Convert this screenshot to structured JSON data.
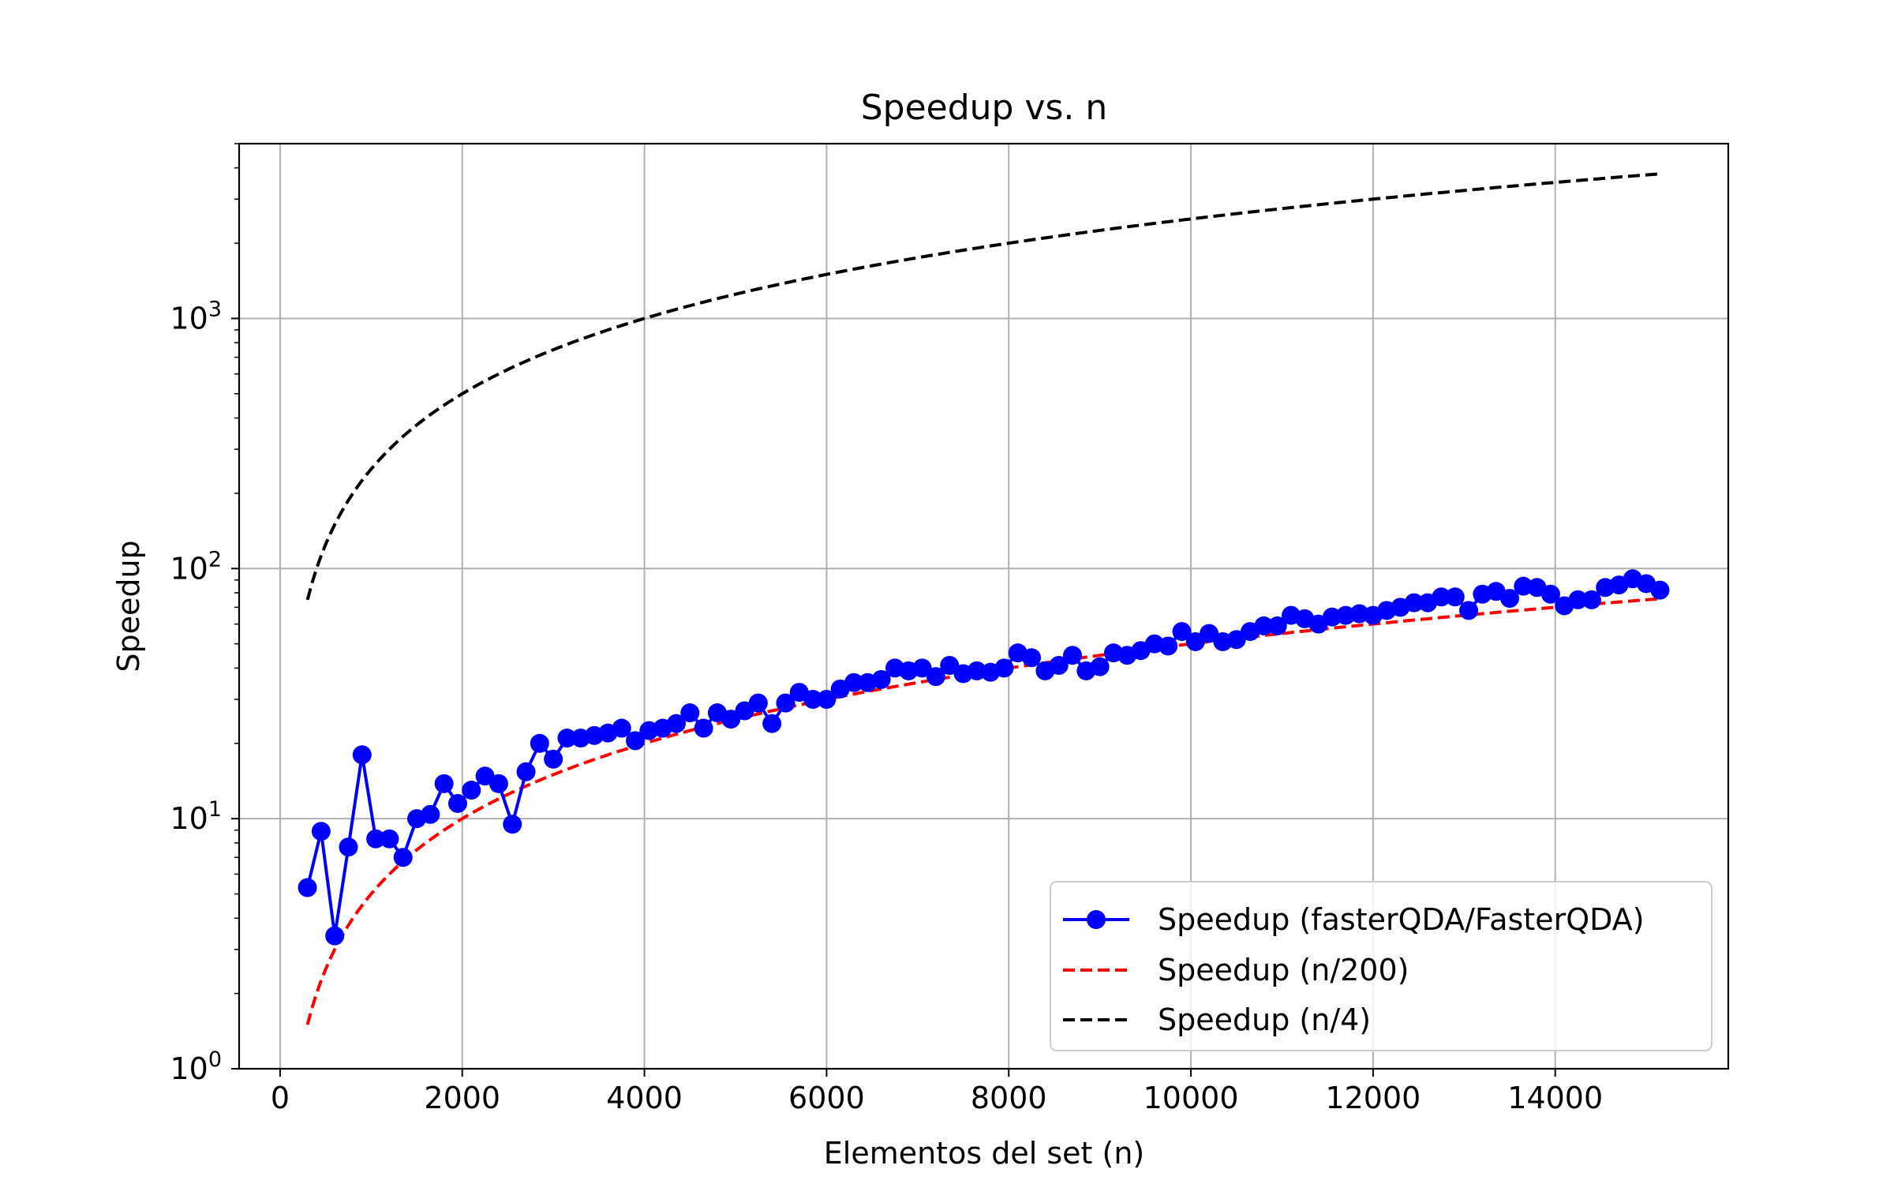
{
  "chart_data": {
    "type": "line",
    "title": "Speedup vs. n",
    "xlabel": "Elementos del set (n)",
    "ylabel": "Speedup",
    "x_scale": "linear",
    "y_scale": "log",
    "xlim": [
      -450,
      15900
    ],
    "ylim": [
      1,
      5000
    ],
    "x_ticks": [
      0,
      2000,
      4000,
      6000,
      8000,
      10000,
      12000,
      14000
    ],
    "x_tick_labels": [
      "0",
      "2000",
      "4000",
      "6000",
      "8000",
      "10000",
      "12000",
      "14000"
    ],
    "y_ticks": [
      1,
      10,
      100,
      1000
    ],
    "y_tick_labels": [
      {
        "base": "10",
        "exp": "0"
      },
      {
        "base": "10",
        "exp": "1"
      },
      {
        "base": "10",
        "exp": "2"
      },
      {
        "base": "10",
        "exp": "3"
      }
    ],
    "grid": true,
    "legend_position": "lower-right",
    "series": [
      {
        "name": "Speedup (fasterQDA/FasterQDA)",
        "color": "#0000ff",
        "style": "solid-marker",
        "x": [
          300,
          450,
          600,
          750,
          900,
          1050,
          1200,
          1350,
          1500,
          1650,
          1800,
          1950,
          2100,
          2250,
          2400,
          2550,
          2700,
          2850,
          3000,
          3150,
          3300,
          3450,
          3600,
          3750,
          3900,
          4050,
          4200,
          4350,
          4500,
          4650,
          4800,
          4950,
          5100,
          5250,
          5400,
          5550,
          5700,
          5850,
          6000,
          6150,
          6300,
          6450,
          6600,
          6750,
          6900,
          7050,
          7200,
          7350,
          7500,
          7650,
          7800,
          7950,
          8100,
          8250,
          8400,
          8550,
          8700,
          8850,
          9000,
          9150,
          9300,
          9450,
          9600,
          9750,
          9900,
          10050,
          10200,
          10350,
          10500,
          10650,
          10800,
          10950,
          11100,
          11250,
          11400,
          11550,
          11700,
          11850,
          12000,
          12150,
          12300,
          12450,
          12600,
          12750,
          12900,
          13050,
          13200,
          13350,
          13500,
          13650,
          13800,
          13950,
          14100,
          14250,
          14400,
          14550,
          14700,
          14850,
          15000,
          15150
        ],
        "y": [
          5.3,
          8.9,
          3.4,
          7.7,
          18.0,
          8.3,
          8.3,
          7.0,
          10.0,
          10.4,
          13.8,
          11.5,
          13.0,
          14.8,
          13.8,
          9.5,
          15.4,
          20.0,
          17.3,
          21.0,
          21.0,
          21.5,
          22.0,
          23.0,
          20.5,
          22.5,
          23.0,
          24.0,
          26.5,
          23.0,
          26.5,
          25.0,
          27.0,
          29.0,
          24.0,
          29.0,
          32.0,
          30.0,
          30.0,
          33.0,
          35.0,
          35.0,
          36.0,
          40.0,
          39.0,
          40.0,
          37.0,
          41.0,
          38.0,
          39.0,
          38.5,
          40.0,
          46.0,
          44.0,
          39.0,
          41.0,
          45.0,
          39.0,
          40.5,
          46.0,
          45.0,
          47.0,
          50.0,
          49.0,
          56.0,
          51.0,
          55.0,
          51.0,
          52.0,
          56.0,
          59.0,
          59.0,
          65.0,
          63.0,
          60.0,
          64.0,
          65.0,
          66.0,
          65.0,
          68.0,
          70.0,
          73.0,
          73.0,
          77.0,
          77.0,
          68.0,
          79.0,
          81.0,
          76.0,
          85.0,
          84.0,
          79.0,
          71.0,
          75.0,
          75.0,
          84.0,
          86.0,
          91.0,
          87.0,
          82.0
        ]
      },
      {
        "name": "Speedup (n/200)",
        "color": "#ff0000",
        "style": "dashed",
        "formula_divisor": 200,
        "x_range": [
          300,
          15150
        ]
      },
      {
        "name": "Speedup (n/4)",
        "color": "#000000",
        "style": "dashed",
        "formula_divisor": 4,
        "x_range": [
          300,
          15150
        ]
      }
    ]
  }
}
